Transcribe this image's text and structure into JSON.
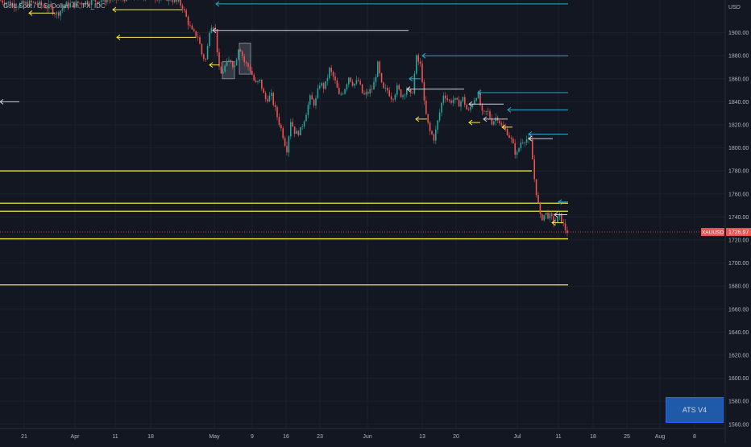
{
  "header": {
    "symbol_title": "Gold Spot / U.S. Dollar, 4h, FX_IDC"
  },
  "badge": {
    "label": "ATS V4"
  },
  "colors": {
    "background": "#131722",
    "grid": "#1e222d",
    "up": "#26a69a",
    "down": "#ef5350",
    "yellow": "#f5e642",
    "white_line": "#d1d4dc",
    "cyan": "#2ba6c9",
    "price_tag": "#ef5350"
  },
  "chart_data": {
    "type": "candlestick",
    "title": "Gold Spot / U.S. Dollar, 4h, FX_IDC",
    "ylabel": "USD",
    "ylim": [
      1555,
      1925
    ],
    "y_ticks": [
      1560,
      1580,
      1600,
      1620,
      1640,
      1660,
      1680,
      1700,
      1720,
      1740,
      1760,
      1780,
      1800,
      1820,
      1840,
      1860,
      1880,
      1900
    ],
    "y_tick_labels": [
      "1560.00",
      "1580.00",
      "1600.00",
      "1620.00",
      "1640.00",
      "1660.00",
      "1680.00",
      "1700.00",
      "1720.00",
      "1740.00",
      "1760.00",
      "1780.00",
      "1800.00",
      "1820.00",
      "1840.00",
      "1860.00",
      "1880.00",
      "1900.00"
    ],
    "x_ticks": [
      "21",
      "Apr",
      "11",
      "18",
      "May",
      "9",
      "16",
      "23",
      "Jun",
      "13",
      "20",
      "Jul",
      "11",
      "18",
      "25",
      "Aug",
      "8"
    ],
    "last_price": {
      "symbol": "XAUUSD",
      "value": "1726.97"
    },
    "close_path": [
      [
        0,
        1928
      ],
      [
        20,
        1924
      ],
      [
        40,
        1926
      ],
      [
        60,
        1922
      ],
      [
        70,
        1916
      ],
      [
        80,
        1924
      ],
      [
        100,
        1926
      ],
      [
        120,
        1928
      ],
      [
        150,
        1930
      ],
      [
        180,
        1932
      ],
      [
        210,
        1930
      ],
      [
        225,
        1924
      ],
      [
        232,
        1910
      ],
      [
        238,
        1900
      ],
      [
        245,
        1897
      ],
      [
        250,
        1880
      ],
      [
        255,
        1876
      ],
      [
        260,
        1908
      ],
      [
        266,
        1905
      ],
      [
        272,
        1862
      ],
      [
        278,
        1870
      ],
      [
        285,
        1877
      ],
      [
        290,
        1870
      ],
      [
        296,
        1890
      ],
      [
        302,
        1875
      ],
      [
        310,
        1868
      ],
      [
        316,
        1855
      ],
      [
        322,
        1858
      ],
      [
        328,
        1842
      ],
      [
        336,
        1845
      ],
      [
        342,
        1830
      ],
      [
        350,
        1812
      ],
      [
        355,
        1798
      ],
      [
        360,
        1824
      ],
      [
        366,
        1812
      ],
      [
        372,
        1815
      ],
      [
        378,
        1828
      ],
      [
        384,
        1843
      ],
      [
        390,
        1838
      ],
      [
        396,
        1856
      ],
      [
        402,
        1852
      ],
      [
        408,
        1868
      ],
      [
        414,
        1860
      ],
      [
        420,
        1845
      ],
      [
        426,
        1850
      ],
      [
        432,
        1862
      ],
      [
        438,
        1855
      ],
      [
        444,
        1858
      ],
      [
        450,
        1845
      ],
      [
        456,
        1848
      ],
      [
        462,
        1852
      ],
      [
        468,
        1872
      ],
      [
        474,
        1850
      ],
      [
        480,
        1850
      ],
      [
        486,
        1843
      ],
      [
        492,
        1852
      ],
      [
        498,
        1845
      ],
      [
        504,
        1852
      ],
      [
        510,
        1843
      ],
      [
        516,
        1878
      ],
      [
        522,
        1870
      ],
      [
        526,
        1835
      ],
      [
        532,
        1815
      ],
      [
        538,
        1808
      ],
      [
        544,
        1828
      ],
      [
        550,
        1848
      ],
      [
        556,
        1840
      ],
      [
        562,
        1842
      ],
      [
        568,
        1838
      ],
      [
        574,
        1843
      ],
      [
        580,
        1830
      ],
      [
        586,
        1840
      ],
      [
        592,
        1848
      ],
      [
        598,
        1828
      ],
      [
        604,
        1832
      ],
      [
        610,
        1822
      ],
      [
        616,
        1828
      ],
      [
        622,
        1818
      ],
      [
        628,
        1815
      ],
      [
        634,
        1806
      ],
      [
        640,
        1793
      ],
      [
        646,
        1806
      ],
      [
        652,
        1808
      ],
      [
        658,
        1805
      ],
      [
        662,
        1775
      ],
      [
        666,
        1756
      ],
      [
        670,
        1738
      ],
      [
        676,
        1743
      ],
      [
        682,
        1740
      ],
      [
        688,
        1735
      ],
      [
        694,
        1741
      ],
      [
        700,
        1730
      ],
      [
        704,
        1727
      ]
    ],
    "horizontal_levels": [
      {
        "price": 1780,
        "x_end": 660,
        "color": "yellow"
      },
      {
        "price": 1752,
        "x_end": 705,
        "color": "yellow"
      },
      {
        "price": 1745,
        "x_end": 705,
        "color": "yellow"
      },
      {
        "price": 1721,
        "x_end": 705,
        "color": "yellow"
      },
      {
        "price": 1681,
        "x_end": 705,
        "color": "yellow"
      }
    ],
    "arrow_levels": [
      {
        "price": 1925,
        "x1": 268,
        "x2": 705,
        "color": "cyan"
      },
      {
        "price": 1920,
        "x1": 140,
        "x2": 226,
        "color": "yellow"
      },
      {
        "price": 1917,
        "x1": 36,
        "x2": 68,
        "color": "yellow"
      },
      {
        "price": 1902,
        "x1": 264,
        "x2": 507,
        "color": "white_line"
      },
      {
        "price": 1896,
        "x1": 145,
        "x2": 243,
        "color": "yellow"
      },
      {
        "price": 1880,
        "x1": 524,
        "x2": 705,
        "color": "cyan"
      },
      {
        "price": 1872,
        "x1": 260,
        "x2": 272,
        "color": "yellow"
      },
      {
        "price": 1860,
        "x1": 508,
        "x2": 522,
        "color": "cyan"
      },
      {
        "price": 1851,
        "x1": 505,
        "x2": 576,
        "color": "white_line"
      },
      {
        "price": 1848,
        "x1": 593,
        "x2": 705,
        "color": "cyan"
      },
      {
        "price": 1838,
        "x1": 582,
        "x2": 625,
        "color": "white_line"
      },
      {
        "price": 1833,
        "x1": 630,
        "x2": 705,
        "color": "cyan"
      },
      {
        "price": 1825,
        "x1": 600,
        "x2": 630,
        "color": "white_line"
      },
      {
        "price": 1825,
        "x1": 516,
        "x2": 530,
        "color": "yellow"
      },
      {
        "price": 1822,
        "x1": 582,
        "x2": 596,
        "color": "yellow"
      },
      {
        "price": 1812,
        "x1": 656,
        "x2": 705,
        "color": "cyan"
      },
      {
        "price": 1808,
        "x1": 656,
        "x2": 686,
        "color": "white_line"
      },
      {
        "price": 1818,
        "x1": 623,
        "x2": 636,
        "color": "yellow"
      },
      {
        "price": 1753,
        "x1": 693,
        "x2": 705,
        "color": "cyan"
      },
      {
        "price": 1742,
        "x1": 688,
        "x2": 704,
        "color": "white_line"
      },
      {
        "price": 1735,
        "x1": 685,
        "x2": 699,
        "color": "yellow"
      },
      {
        "price": 1840,
        "x1": 0,
        "x2": 24,
        "color": "white_line"
      }
    ],
    "boxes": [
      {
        "x1": 297,
        "x2": 311,
        "p_top": 1891,
        "p_bottom": 1864
      },
      {
        "x1": 276,
        "x2": 291,
        "p_top": 1875,
        "p_bottom": 1860
      }
    ]
  }
}
